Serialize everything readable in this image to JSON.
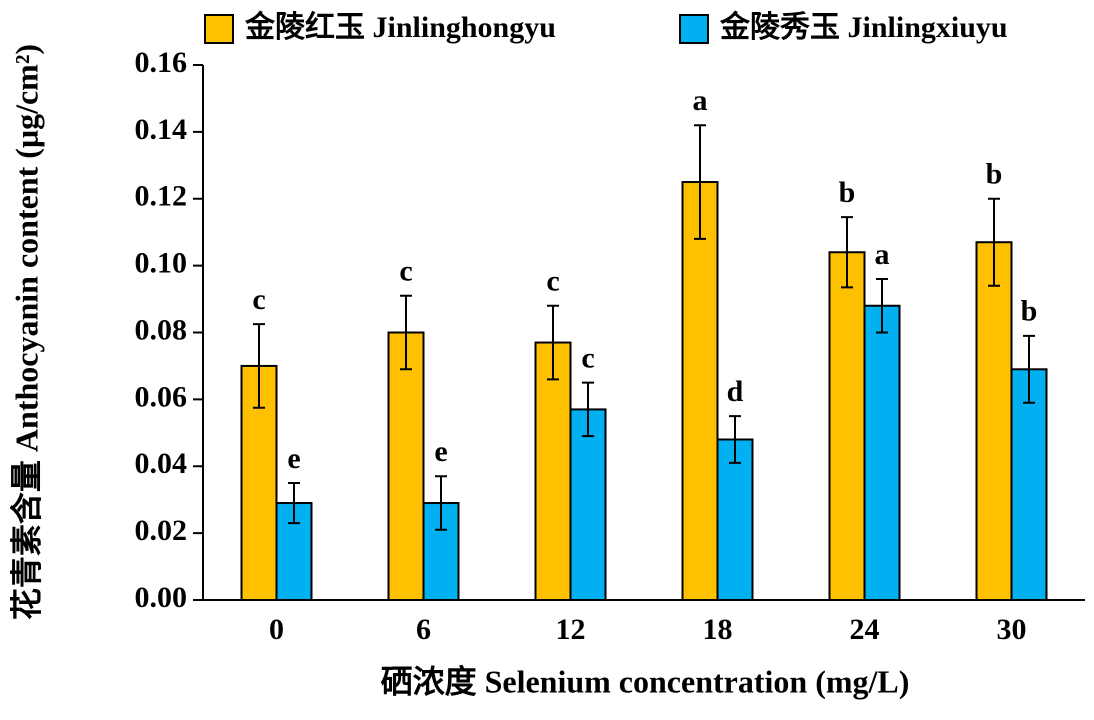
{
  "chart_data": {
    "type": "bar",
    "y_label": "花青素含量 Anthocyanin content (μg/cm²)",
    "x_label": "硒浓度 Selenium concentration (mg/L)",
    "categories": [
      "0",
      "6",
      "12",
      "18",
      "24",
      "30"
    ],
    "series": [
      {
        "name": "金陵红玉 Jinlinghongyu",
        "color": "#ffc000",
        "values": [
          0.07,
          0.08,
          0.077,
          0.125,
          0.104,
          0.107
        ],
        "errors": [
          0.0125,
          0.011,
          0.011,
          0.017,
          0.0105,
          0.013
        ],
        "labels": [
          "c",
          "c",
          "c",
          "a",
          "b",
          "b"
        ]
      },
      {
        "name": "金陵秀玉 Jinlingxiuyu",
        "color": "#00b0f0",
        "values": [
          0.029,
          0.029,
          0.057,
          0.048,
          0.088,
          0.069
        ],
        "errors": [
          0.006,
          0.008,
          0.008,
          0.007,
          0.008,
          0.01
        ],
        "labels": [
          "e",
          "e",
          "c",
          "d",
          "a",
          "b"
        ]
      }
    ],
    "ylim": [
      0,
      0.16
    ],
    "yticks": [
      {
        "value": 0,
        "label": "0.00"
      },
      {
        "value": 0.02,
        "label": "0.02"
      },
      {
        "value": 0.04,
        "label": "0.04"
      },
      {
        "value": 0.06,
        "label": "0.06"
      },
      {
        "value": 0.08,
        "label": "0.08"
      },
      {
        "value": 0.1,
        "label": "0.10"
      },
      {
        "value": 0.12,
        "label": "0.12"
      },
      {
        "value": 0.14,
        "label": "0.14"
      },
      {
        "value": 0.16,
        "label": "0.16"
      }
    ],
    "legend": "top"
  }
}
